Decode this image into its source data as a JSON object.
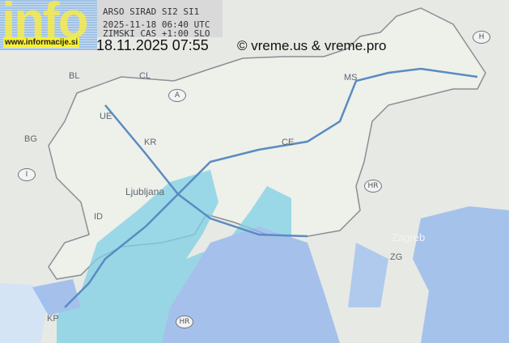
{
  "logo": {
    "text": "info",
    "url": "www.informacije.si"
  },
  "radar": {
    "line1": "ARSO SIRAD SI2 SI1",
    "line2": "2025-11-18 06:40 UTC",
    "line3": "ZIMSKI CAS +1:00 SLO"
  },
  "timestamp": "18.11.2025 07:55",
  "copyright": "© vreme.us & vreme.pro",
  "map_labels": {
    "bl": "BL",
    "cl": "CL",
    "a": "A",
    "h": "H",
    "ue": "UE",
    "bg": "BG",
    "kr": "KR",
    "ce": "CE",
    "ms": "MS",
    "i": "I",
    "id": "ID",
    "hr1": "HR",
    "hr2": "HR",
    "zg": "ZG",
    "zagreb": "Zagreb",
    "kp": "KP",
    "lj": "Ljubljana"
  },
  "colors": {
    "radar_light": "#7fd0e6",
    "radar_blue": "#8fb4ee",
    "border": "#4b7fb8"
  }
}
